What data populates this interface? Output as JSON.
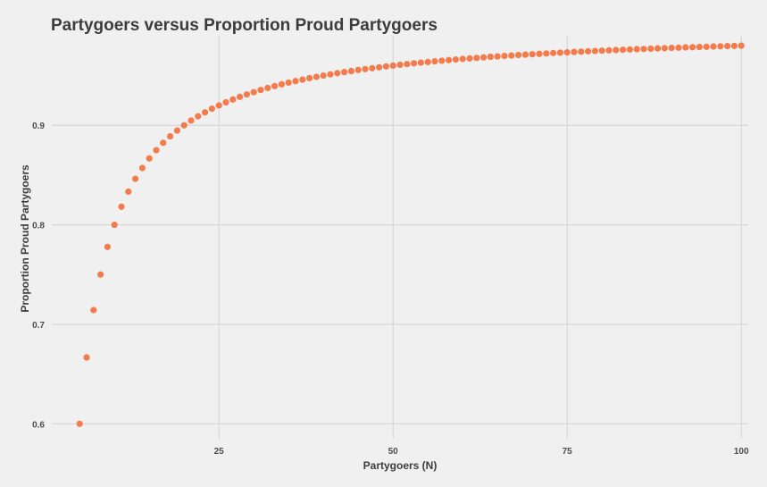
{
  "chart_data": {
    "type": "scatter",
    "title": "Partygoers versus Proportion Proud Partygoers",
    "xlabel": "Partygoers (N)",
    "ylabel": "Proportion Proud Partygoers",
    "xlim": [
      1,
      101
    ],
    "ylim": [
      0.585,
      0.99
    ],
    "xticks": [
      25,
      50,
      75,
      100
    ],
    "yticks": [
      0.6,
      0.7,
      0.8,
      0.9
    ],
    "xtick_labels": [
      "25",
      "50",
      "75",
      "100"
    ],
    "ytick_labels": [
      "0.6",
      "0.7",
      "0.8",
      "0.9"
    ],
    "grid": true,
    "legend": "none",
    "point_color": "#f47c4c",
    "series": [
      {
        "x": [
          5,
          6,
          7,
          8,
          9,
          10,
          11,
          12,
          13,
          14,
          15,
          16,
          17,
          18,
          19,
          20,
          21,
          22,
          23,
          24,
          25,
          26,
          27,
          28,
          29,
          30,
          31,
          32,
          33,
          34,
          35,
          36,
          37,
          38,
          39,
          40,
          41,
          42,
          43,
          44,
          45,
          46,
          47,
          48,
          49,
          50,
          51,
          52,
          53,
          54,
          55,
          56,
          57,
          58,
          59,
          60,
          61,
          62,
          63,
          64,
          65,
          66,
          67,
          68,
          69,
          70,
          71,
          72,
          73,
          74,
          75,
          76,
          77,
          78,
          79,
          80,
          81,
          82,
          83,
          84,
          85,
          86,
          87,
          88,
          89,
          90,
          91,
          92,
          93,
          94,
          95,
          96,
          97,
          98,
          99,
          100
        ],
        "y": [
          0.6,
          0.6667,
          0.7143,
          0.75,
          0.7778,
          0.8,
          0.8182,
          0.8333,
          0.8462,
          0.8571,
          0.8667,
          0.875,
          0.8824,
          0.8889,
          0.8947,
          0.9,
          0.9048,
          0.9091,
          0.913,
          0.9167,
          0.92,
          0.9231,
          0.9259,
          0.9286,
          0.931,
          0.9333,
          0.9355,
          0.9375,
          0.9394,
          0.9412,
          0.9429,
          0.9444,
          0.9459,
          0.9474,
          0.9487,
          0.95,
          0.9512,
          0.9524,
          0.9535,
          0.9545,
          0.9556,
          0.9565,
          0.9574,
          0.9583,
          0.9592,
          0.96,
          0.9608,
          0.9615,
          0.9623,
          0.963,
          0.9636,
          0.9643,
          0.9649,
          0.9655,
          0.9661,
          0.9667,
          0.9672,
          0.9677,
          0.9683,
          0.9688,
          0.9692,
          0.9697,
          0.9701,
          0.9706,
          0.971,
          0.9714,
          0.9718,
          0.9722,
          0.9726,
          0.973,
          0.9733,
          0.9737,
          0.974,
          0.9744,
          0.9747,
          0.975,
          0.9753,
          0.9756,
          0.9759,
          0.9762,
          0.9765,
          0.9767,
          0.977,
          0.9773,
          0.9775,
          0.9778,
          0.978,
          0.9783,
          0.9785,
          0.9787,
          0.9789,
          0.9792,
          0.9794,
          0.9796,
          0.9798,
          0.98
        ]
      }
    ]
  }
}
